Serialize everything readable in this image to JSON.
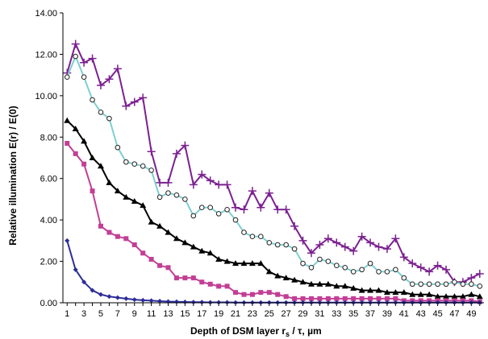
{
  "chart_data": {
    "type": "line",
    "xlabel": "Depth of DSM layer r",
    "xlabel_sub": "s",
    "xlabel_tail": " / τ,  µm",
    "ylabel": "Relative illumination  E(r) / E(0)",
    "ylim": [
      0,
      14
    ],
    "y_ticks": [
      "0.00",
      "2.00",
      "4.00",
      "6.00",
      "8.00",
      "10.00",
      "12.00",
      "14.00"
    ],
    "x": [
      1,
      2,
      3,
      4,
      5,
      6,
      7,
      8,
      9,
      10,
      11,
      12,
      13,
      14,
      15,
      16,
      17,
      18,
      19,
      20,
      21,
      22,
      23,
      24,
      25,
      26,
      27,
      28,
      29,
      30,
      31,
      32,
      33,
      34,
      35,
      36,
      37,
      38,
      39,
      40,
      41,
      42,
      43,
      44,
      45,
      46,
      47,
      48,
      49,
      50
    ],
    "x_tick_labels": [
      "1",
      "3",
      "5",
      "7",
      "9",
      "11",
      "13",
      "15",
      "17",
      "19",
      "21",
      "23",
      "25",
      "27",
      "29",
      "31",
      "33",
      "35",
      "37",
      "39",
      "41",
      "43",
      "45",
      "47",
      "49"
    ],
    "grid": false,
    "legend": "none",
    "series": [
      {
        "marker": "plus",
        "color": "#7b2090",
        "values": [
          11.1,
          12.5,
          11.6,
          11.8,
          10.5,
          10.8,
          11.3,
          9.5,
          9.7,
          9.9,
          7.3,
          5.8,
          5.8,
          7.2,
          7.6,
          5.7,
          6.2,
          5.9,
          5.7,
          5.7,
          4.6,
          4.5,
          5.4,
          4.6,
          5.3,
          4.5,
          4.5,
          3.7,
          3.0,
          2.4,
          2.8,
          3.1,
          2.9,
          2.7,
          2.5,
          3.2,
          2.9,
          2.7,
          2.6,
          3.1,
          2.2,
          1.9,
          1.7,
          1.5,
          1.8,
          1.6,
          1.0,
          1.0,
          1.2,
          1.4
        ]
      },
      {
        "marker": "circle",
        "color": "#7ecfcf",
        "values": [
          10.9,
          11.9,
          10.9,
          9.8,
          9.2,
          8.9,
          7.5,
          6.8,
          6.7,
          6.6,
          6.4,
          5.1,
          5.3,
          5.2,
          5.0,
          4.2,
          4.6,
          4.6,
          4.3,
          4.5,
          4.0,
          3.4,
          3.2,
          3.2,
          2.9,
          2.8,
          2.8,
          2.6,
          1.9,
          1.7,
          2.1,
          2.0,
          1.8,
          1.7,
          1.5,
          1.6,
          1.9,
          1.5,
          1.5,
          1.6,
          1.2,
          0.9,
          0.9,
          0.9,
          0.9,
          0.9,
          1.0,
          0.9,
          0.9,
          0.8
        ]
      },
      {
        "marker": "triangle",
        "color": "#000000",
        "values": [
          8.8,
          8.4,
          7.8,
          7.0,
          6.6,
          5.8,
          5.4,
          5.1,
          4.9,
          4.7,
          3.9,
          3.7,
          3.4,
          3.1,
          2.9,
          2.7,
          2.5,
          2.4,
          2.1,
          2.0,
          1.9,
          1.9,
          1.9,
          1.9,
          1.5,
          1.3,
          1.2,
          1.1,
          1.0,
          0.9,
          0.9,
          0.9,
          0.8,
          0.8,
          0.7,
          0.6,
          0.6,
          0.6,
          0.5,
          0.5,
          0.5,
          0.4,
          0.4,
          0.4,
          0.3,
          0.3,
          0.3,
          0.3,
          0.4,
          0.3
        ]
      },
      {
        "marker": "square",
        "color": "#c23f95",
        "values": [
          7.7,
          7.2,
          6.7,
          5.4,
          3.7,
          3.4,
          3.2,
          3.1,
          2.8,
          2.4,
          2.1,
          1.8,
          1.7,
          1.2,
          1.2,
          1.2,
          1.0,
          0.9,
          0.8,
          0.8,
          0.5,
          0.4,
          0.4,
          0.5,
          0.5,
          0.4,
          0.3,
          0.2,
          0.2,
          0.2,
          0.2,
          0.2,
          0.2,
          0.2,
          0.2,
          0.2,
          0.2,
          0.2,
          0.2,
          0.2,
          0.1,
          0.1,
          0.1,
          0.1,
          0.1,
          0.1,
          0.1,
          0.1,
          0.1,
          0.05
        ]
      },
      {
        "marker": "diamond",
        "color": "#2d2d9a",
        "values": [
          3.0,
          1.6,
          1.0,
          0.6,
          0.4,
          0.3,
          0.25,
          0.2,
          0.15,
          0.12,
          0.1,
          0.08,
          0.06,
          0.05,
          0.04,
          0.03,
          0.03,
          0.02,
          0.02,
          0.02,
          0.01,
          0.01,
          0.01,
          0.01,
          0.01,
          0.01,
          0.01,
          0.01,
          0.01,
          0.01,
          0.01,
          0.01,
          0.01,
          0.01,
          0.01,
          0.01,
          0.01,
          0.01,
          0.01,
          0.01,
          0.01,
          0.01,
          0.01,
          0.01,
          0.01,
          0.01,
          0.01,
          0.01,
          0.01,
          0.01
        ]
      }
    ]
  }
}
